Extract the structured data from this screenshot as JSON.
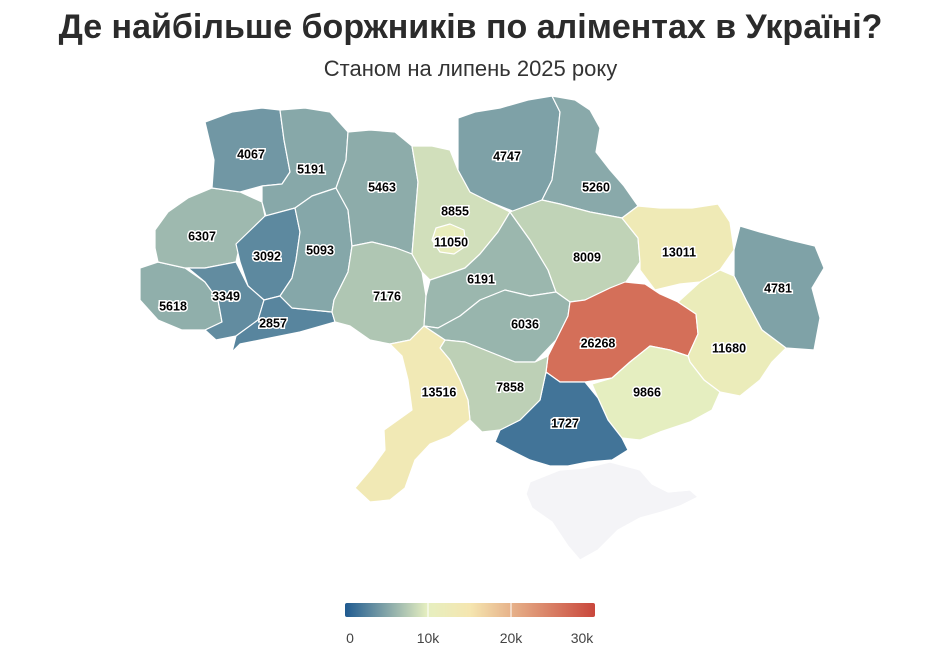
{
  "title": "Де найбільше боржників по аліментах в Україні?",
  "subtitle": "Станом на липень 2025 року",
  "legend": {
    "min": 0,
    "max": 30000,
    "ticks": [
      "0",
      "10k",
      "20k",
      "30k"
    ],
    "colors": [
      "#1f5a90",
      "#e6efc0",
      "#f5e6b0",
      "#c9473c"
    ]
  },
  "map_data": {
    "no_data_color": "#f4f4f7",
    "regions": [
      {
        "id": "volyn",
        "value": 4067
      },
      {
        "id": "rivne",
        "value": 5191
      },
      {
        "id": "zhytomyr",
        "value": 5463
      },
      {
        "id": "kyiv-oblast",
        "value": 8855
      },
      {
        "id": "kyiv-city",
        "value": 11050
      },
      {
        "id": "chernihiv",
        "value": 4747
      },
      {
        "id": "sumy",
        "value": 5260
      },
      {
        "id": "lviv",
        "value": 6307
      },
      {
        "id": "ternopil",
        "value": 3092
      },
      {
        "id": "khmelnytskyi",
        "value": 5093
      },
      {
        "id": "zakarpattia",
        "value": 5618
      },
      {
        "id": "ivano-frankivsk",
        "value": 3349
      },
      {
        "id": "chernivtsi",
        "value": 2857
      },
      {
        "id": "vinnytsia",
        "value": 7176
      },
      {
        "id": "cherkasy",
        "value": 6191
      },
      {
        "id": "poltava",
        "value": 8009
      },
      {
        "id": "kharkiv",
        "value": 13011
      },
      {
        "id": "luhansk",
        "value": 4781
      },
      {
        "id": "kirovohrad",
        "value": 6036
      },
      {
        "id": "dnipropetrovsk",
        "value": 26268
      },
      {
        "id": "donetsk",
        "value": 11680
      },
      {
        "id": "odesa",
        "value": 13516
      },
      {
        "id": "mykolaiv",
        "value": 7858
      },
      {
        "id": "zaporizhzhia",
        "value": 9866
      },
      {
        "id": "kherson",
        "value": 1727
      },
      {
        "id": "crimea",
        "value": null
      }
    ]
  }
}
